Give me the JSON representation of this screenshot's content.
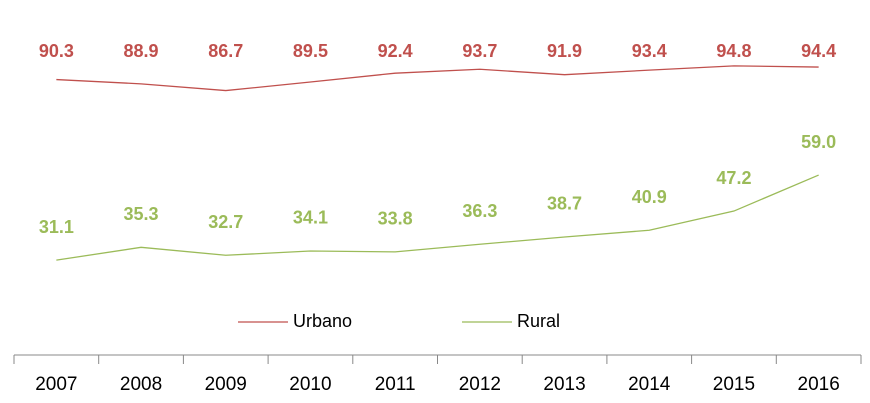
{
  "chart_data": {
    "type": "line",
    "categories": [
      "2007",
      "2008",
      "2009",
      "2010",
      "2011",
      "2012",
      "2013",
      "2014",
      "2015",
      "2016"
    ],
    "series": [
      {
        "name": "Urbano",
        "color": "#c0504d",
        "values": [
          90.3,
          88.9,
          86.7,
          89.5,
          92.4,
          93.7,
          91.9,
          93.4,
          94.8,
          94.4
        ],
        "value_labels": [
          "90.3",
          "88.9",
          "86.7",
          "89.5",
          "92.4",
          "93.7",
          "91.9",
          "93.4",
          "94.8",
          "94.4"
        ]
      },
      {
        "name": "Rural",
        "color": "#9bbb59",
        "values": [
          31.1,
          35.3,
          32.7,
          34.1,
          33.8,
          36.3,
          38.7,
          40.9,
          47.2,
          59.0
        ],
        "value_labels": [
          "31.1",
          "35.3",
          "32.7",
          "34.1",
          "33.8",
          "36.3",
          "38.7",
          "40.9",
          "47.2",
          "59.0"
        ]
      }
    ],
    "ylim": [
      0,
      100
    ],
    "legend": "bottom"
  }
}
